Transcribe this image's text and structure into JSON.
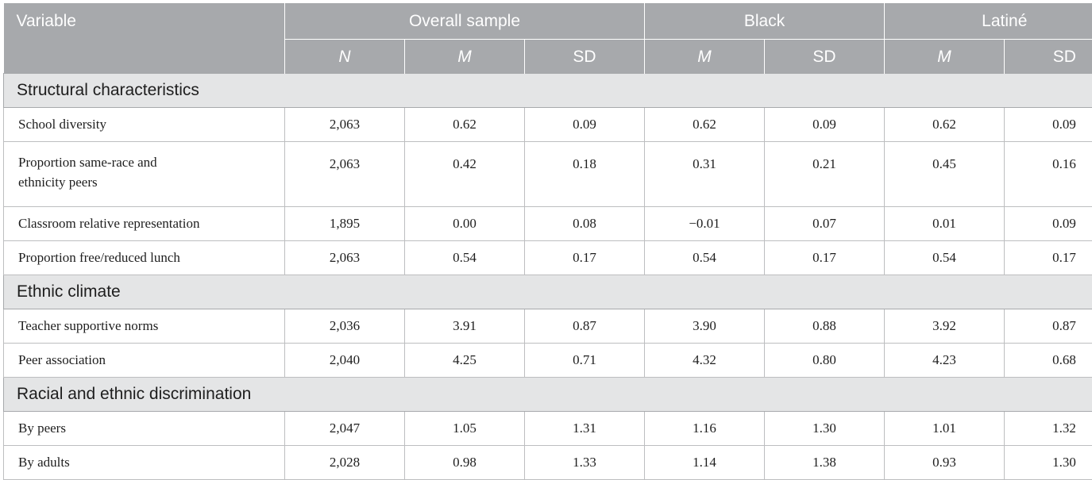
{
  "header": {
    "variable": "Variable",
    "groups": [
      "Overall sample",
      "Black",
      "Latiné"
    ],
    "subheaders": [
      "N",
      "M",
      "SD",
      "M",
      "SD",
      "M",
      "SD"
    ]
  },
  "sections": [
    {
      "title": "Structural characteristics",
      "rows": [
        {
          "label": "School diversity",
          "values": [
            "2,063",
            "0.62",
            "0.09",
            "0.62",
            "0.09",
            "0.62",
            "0.09"
          ]
        },
        {
          "label_lines": [
            "Proportion same-race and",
            "ethnicity peers"
          ],
          "values": [
            "2,063",
            "0.42",
            "0.18",
            "0.31",
            "0.21",
            "0.45",
            "0.16"
          ]
        },
        {
          "label": "Classroom relative representation",
          "values": [
            "1,895",
            "0.00",
            "0.08",
            "−0.01",
            "0.07",
            "0.01",
            "0.09"
          ]
        },
        {
          "label": "Proportion free/reduced lunch",
          "values": [
            "2,063",
            "0.54",
            "0.17",
            "0.54",
            "0.17",
            "0.54",
            "0.17"
          ]
        }
      ]
    },
    {
      "title": "Ethnic climate",
      "rows": [
        {
          "label": "Teacher supportive norms",
          "values": [
            "2,036",
            "3.91",
            "0.87",
            "3.90",
            "0.88",
            "3.92",
            "0.87"
          ]
        },
        {
          "label": "Peer association",
          "values": [
            "2,040",
            "4.25",
            "0.71",
            "4.32",
            "0.80",
            "4.23",
            "0.68"
          ]
        }
      ]
    },
    {
      "title": "Racial and ethnic discrimination",
      "rows": [
        {
          "label": "By peers",
          "values": [
            "2,047",
            "1.05",
            "1.31",
            "1.16",
            "1.30",
            "1.01",
            "1.32"
          ]
        },
        {
          "label": "By adults",
          "values": [
            "2,028",
            "0.98",
            "1.33",
            "1.14",
            "1.38",
            "0.93",
            "1.30"
          ]
        }
      ]
    }
  ]
}
